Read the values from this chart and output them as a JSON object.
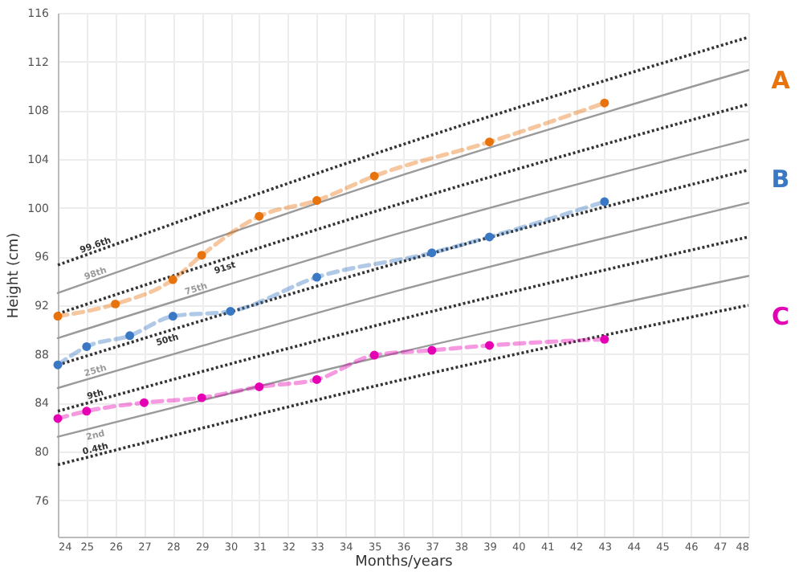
{
  "chart_data": {
    "type": "line",
    "xlabel": "Months/years",
    "ylabel": "Height (cm)",
    "xlim": [
      24,
      48
    ],
    "ylim": [
      73,
      116
    ],
    "xticks": [
      24,
      25,
      26,
      27,
      28,
      29,
      30,
      31,
      32,
      33,
      34,
      35,
      36,
      37,
      38,
      39,
      40,
      41,
      42,
      43,
      44,
      45,
      46,
      47,
      48
    ],
    "yticks": [
      76,
      80,
      84,
      88,
      92,
      96,
      100,
      104,
      108,
      112,
      116
    ],
    "grid": true,
    "series": [
      {
        "name": "99.6th",
        "color": "#333333",
        "line_style": "dotted",
        "x": [
          24,
          36,
          48
        ],
        "values": [
          95.3,
          105.2,
          114.0
        ]
      },
      {
        "name": "98th",
        "color": "#9a9a9a",
        "line_style": "solid",
        "x": [
          24,
          36,
          48
        ],
        "values": [
          93.0,
          102.7,
          111.3
        ]
      },
      {
        "name": "91st",
        "color": "#333333",
        "line_style": "dotted",
        "x": [
          24,
          36,
          48
        ],
        "values": [
          91.3,
          100.4,
          108.5
        ]
      },
      {
        "name": "75th",
        "color": "#9a9a9a",
        "line_style": "solid",
        "x": [
          24,
          36,
          48
        ],
        "values": [
          89.3,
          98.0,
          105.6
        ]
      },
      {
        "name": "50th",
        "color": "#333333",
        "line_style": "dotted",
        "x": [
          24,
          36,
          48
        ],
        "values": [
          87.1,
          95.6,
          103.1
        ]
      },
      {
        "name": "25th",
        "color": "#9a9a9a",
        "line_style": "solid",
        "x": [
          24,
          36,
          48
        ],
        "values": [
          85.2,
          93.3,
          100.4
        ]
      },
      {
        "name": "9th",
        "color": "#333333",
        "line_style": "dotted",
        "x": [
          24,
          36,
          48
        ],
        "values": [
          83.3,
          90.9,
          97.6
        ]
      },
      {
        "name": "2nd",
        "color": "#9a9a9a",
        "line_style": "solid",
        "x": [
          24,
          36,
          48
        ],
        "values": [
          81.2,
          88.2,
          94.4
        ]
      },
      {
        "name": "0.4th",
        "color": "#333333",
        "line_style": "dotted",
        "x": [
          24,
          36,
          48
        ],
        "values": [
          78.9,
          85.9,
          92.0
        ]
      },
      {
        "name": "A",
        "color": "#e8720c",
        "line_style": "dashed",
        "marker": "circle",
        "x": [
          24,
          26,
          28,
          29,
          31,
          33,
          35,
          39,
          43
        ],
        "values": [
          91.1,
          92.1,
          94.1,
          96.1,
          99.3,
          100.6,
          102.6,
          105.4,
          108.6
        ]
      },
      {
        "name": "B",
        "color": "#3a78c4",
        "line_style": "dashed",
        "marker": "circle",
        "x": [
          24,
          25,
          26.5,
          28,
          30,
          33,
          37,
          39,
          43
        ],
        "values": [
          87.1,
          88.6,
          89.5,
          91.1,
          91.5,
          94.3,
          96.3,
          97.6,
          100.5
        ]
      },
      {
        "name": "C",
        "color": "#e600b4",
        "line_style": "dashed",
        "marker": "circle",
        "x": [
          24,
          25,
          27,
          29,
          31,
          33,
          35,
          37,
          39,
          43
        ],
        "values": [
          82.7,
          83.3,
          84.0,
          84.4,
          85.3,
          85.9,
          87.9,
          88.3,
          88.7,
          89.2
        ]
      }
    ]
  }
}
